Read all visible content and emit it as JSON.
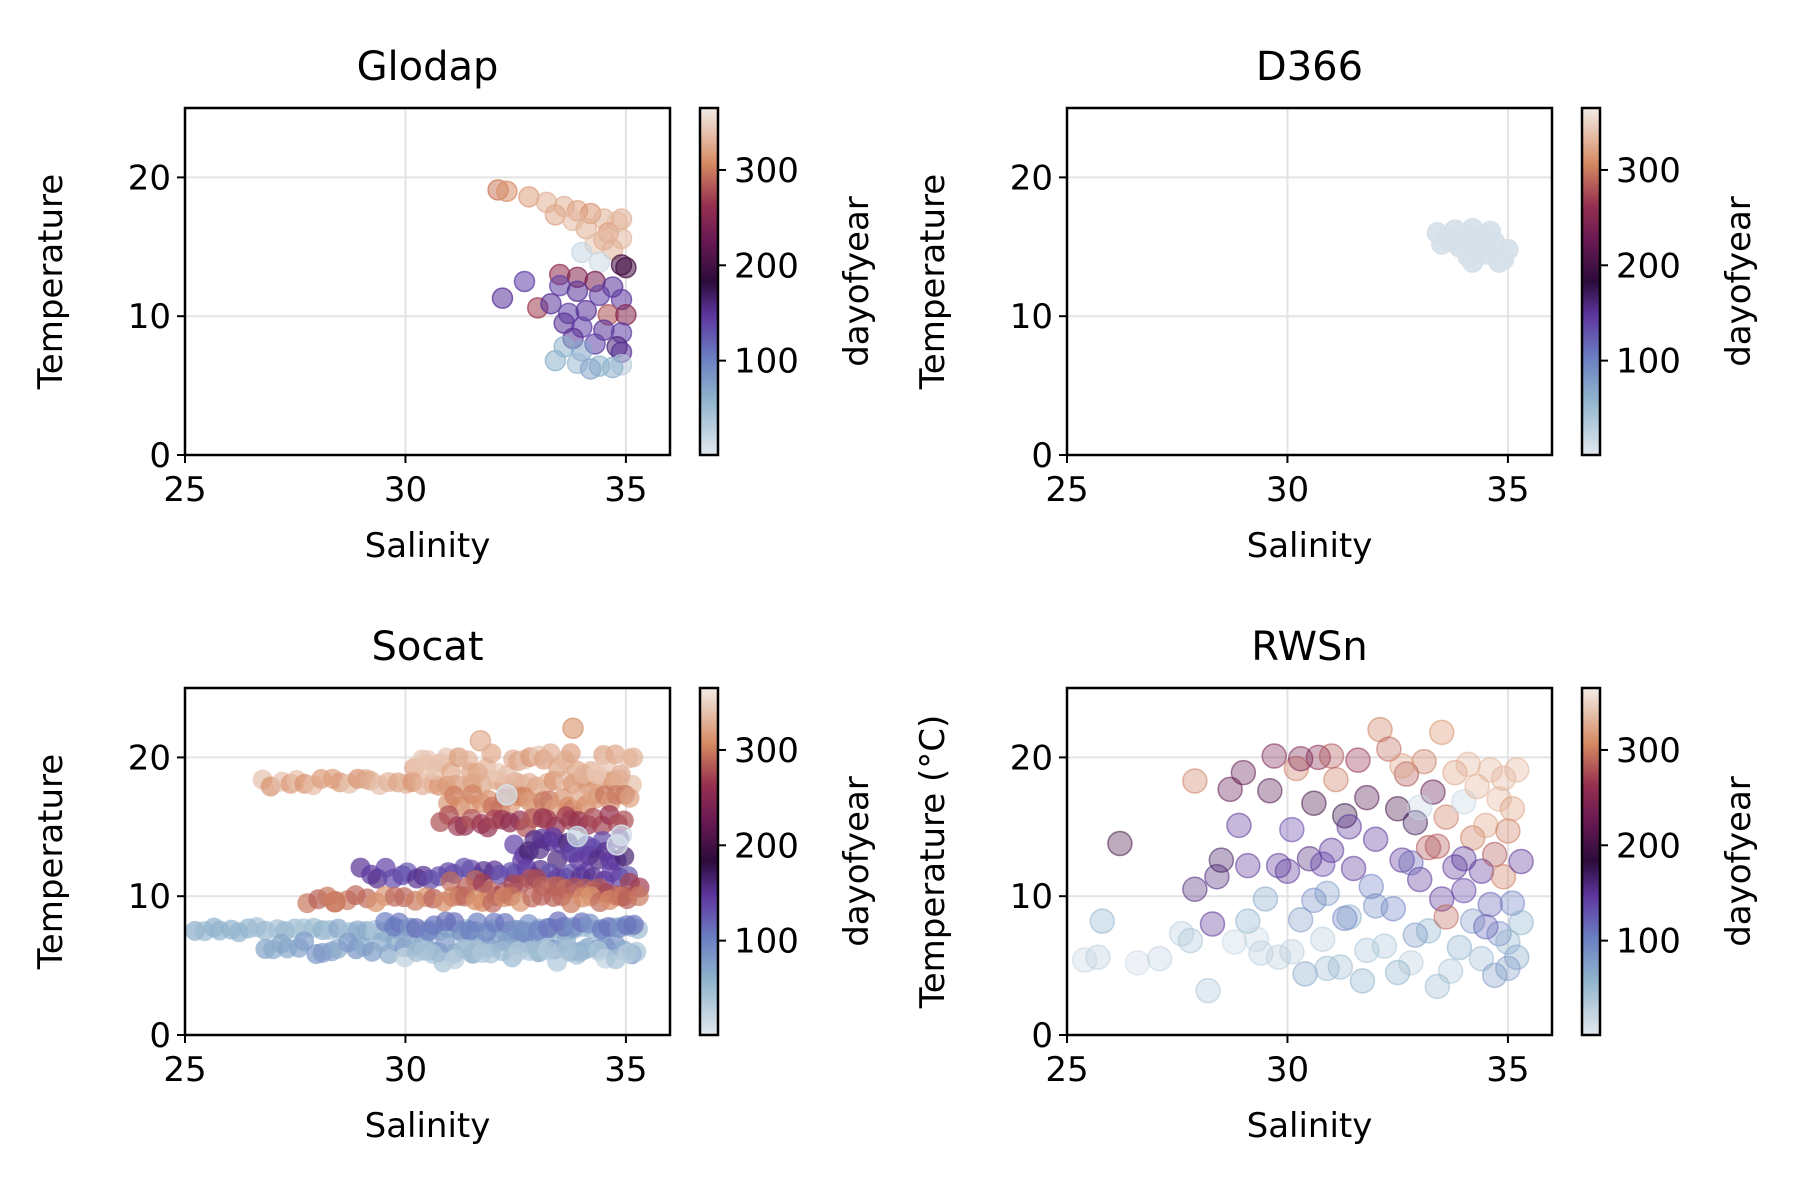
{
  "chart_data": [
    {
      "type": "scatter",
      "title": "Glodap",
      "xlabel": "Salinity",
      "ylabel": "Temperature",
      "xlim": [
        25,
        36
      ],
      "ylim": [
        0,
        25
      ],
      "xticks": [
        "25",
        "30",
        "35"
      ],
      "yticks": [
        "0",
        "10",
        "20"
      ],
      "colorbar": {
        "label": "dayofyear",
        "ticks": [
          "100",
          "200",
          "300"
        ],
        "range": [
          1,
          365
        ]
      },
      "points": [
        [
          32.1,
          19.1,
          300
        ],
        [
          32.3,
          19.0,
          310
        ],
        [
          32.8,
          18.6,
          320
        ],
        [
          33.2,
          18.2,
          330
        ],
        [
          33.6,
          17.9,
          330
        ],
        [
          33.9,
          17.6,
          320
        ],
        [
          34.2,
          17.4,
          315
        ],
        [
          34.5,
          17.0,
          330
        ],
        [
          34.8,
          16.8,
          340
        ],
        [
          33.4,
          17.3,
          325
        ],
        [
          33.8,
          16.9,
          335
        ],
        [
          34.1,
          16.3,
          330
        ],
        [
          34.6,
          16.0,
          320
        ],
        [
          34.9,
          15.6,
          335
        ],
        [
          34.3,
          15.2,
          340
        ],
        [
          34.7,
          14.8,
          330
        ],
        [
          34.0,
          14.6,
          20
        ],
        [
          34.4,
          13.9,
          15
        ],
        [
          34.9,
          13.7,
          200
        ],
        [
          33.5,
          13.0,
          260
        ],
        [
          33.9,
          12.8,
          250
        ],
        [
          34.3,
          12.5,
          240
        ],
        [
          34.7,
          12.1,
          150
        ],
        [
          32.7,
          12.5,
          140
        ],
        [
          33.5,
          12.2,
          140
        ],
        [
          33.9,
          11.8,
          150
        ],
        [
          34.4,
          11.5,
          140
        ],
        [
          34.9,
          11.2,
          145
        ],
        [
          32.2,
          11.3,
          150
        ],
        [
          33.0,
          10.6,
          270
        ],
        [
          33.3,
          10.9,
          150
        ],
        [
          33.7,
          10.2,
          140
        ],
        [
          34.1,
          10.4,
          150
        ],
        [
          34.6,
          10.1,
          280
        ],
        [
          35.0,
          10.1,
          250
        ],
        [
          33.6,
          9.5,
          150
        ],
        [
          34.0,
          9.2,
          140
        ],
        [
          34.5,
          9.0,
          150
        ],
        [
          34.9,
          8.8,
          140
        ],
        [
          33.8,
          8.4,
          150
        ],
        [
          34.3,
          8.0,
          140
        ],
        [
          34.8,
          7.8,
          160
        ],
        [
          33.6,
          7.8,
          60
        ],
        [
          34.0,
          7.5,
          70
        ],
        [
          34.9,
          7.4,
          150
        ],
        [
          33.4,
          6.8,
          60
        ],
        [
          33.9,
          6.6,
          50
        ],
        [
          34.4,
          6.4,
          60
        ],
        [
          34.9,
          6.5,
          30
        ],
        [
          34.2,
          6.2,
          70
        ],
        [
          34.7,
          6.3,
          60
        ],
        [
          35.0,
          13.5,
          200
        ],
        [
          34.5,
          15.5,
          330
        ],
        [
          34.9,
          17.0,
          330
        ]
      ]
    },
    {
      "type": "scatter",
      "title": "D366",
      "xlabel": "Salinity",
      "ylabel": "Temperature",
      "xlim": [
        25,
        36
      ],
      "ylim": [
        0,
        25
      ],
      "xticks": [
        "25",
        "30",
        "35"
      ],
      "yticks": [
        "0",
        "10",
        "20"
      ],
      "colorbar": {
        "label": "dayofyear",
        "ticks": [
          "100",
          "200",
          "300"
        ],
        "range": [
          1,
          365
        ]
      },
      "points": [
        [
          33.4,
          16.0,
          10
        ],
        [
          33.6,
          15.6,
          10
        ],
        [
          33.8,
          16.2,
          10
        ],
        [
          34.0,
          15.9,
          10
        ],
        [
          34.2,
          16.3,
          10
        ],
        [
          34.4,
          15.8,
          10
        ],
        [
          34.6,
          16.1,
          10
        ],
        [
          33.5,
          15.2,
          10
        ],
        [
          33.9,
          15.0,
          10
        ],
        [
          34.3,
          14.9,
          10
        ],
        [
          34.7,
          15.3,
          10
        ],
        [
          35.0,
          14.8,
          10
        ],
        [
          34.1,
          14.3,
          10
        ],
        [
          34.5,
          14.5,
          10
        ],
        [
          34.9,
          14.1,
          10
        ],
        [
          34.2,
          13.9,
          10
        ],
        [
          34.8,
          13.9,
          10
        ],
        [
          33.7,
          15.4,
          10
        ],
        [
          34.1,
          15.5,
          10
        ],
        [
          34.5,
          15.0,
          10
        ]
      ]
    },
    {
      "type": "scatter",
      "title": "Socat",
      "xlabel": "Salinity",
      "ylabel": "Temperature",
      "xlim": [
        25,
        36
      ],
      "ylim": [
        0,
        25
      ],
      "xticks": [
        "25",
        "30",
        "35"
      ],
      "yticks": [
        "0",
        "10",
        "20"
      ],
      "colorbar": {
        "label": "dayofyear",
        "ticks": [
          "100",
          "200",
          "300"
        ],
        "range": [
          1,
          365
        ]
      },
      "bands": [
        {
          "x0": 26.8,
          "x1": 35.1,
          "y": 18.2,
          "n": 45,
          "jx": 0.05,
          "jy": 0.3,
          "d": 325
        },
        {
          "x0": 30.2,
          "x1": 35.2,
          "y": 19.6,
          "n": 35,
          "jx": 0.05,
          "jy": 0.9,
          "d": 330
        },
        {
          "x0": 31.0,
          "x1": 35.1,
          "y": 16.8,
          "n": 30,
          "jx": 0.05,
          "jy": 0.6,
          "d": 310
        },
        {
          "x0": 30.8,
          "x1": 35.0,
          "y": 15.4,
          "n": 25,
          "jx": 0.05,
          "jy": 0.5,
          "d": 270
        },
        {
          "x0": 32.5,
          "x1": 35.0,
          "y": 13.4,
          "n": 25,
          "jx": 0.05,
          "jy": 0.9,
          "d": 150
        },
        {
          "x0": 29.0,
          "x1": 35.0,
          "y": 11.6,
          "n": 35,
          "jx": 0.05,
          "jy": 0.5,
          "d": 140
        },
        {
          "x0": 31.0,
          "x1": 35.3,
          "y": 10.6,
          "n": 25,
          "jx": 0.05,
          "jy": 0.7,
          "d": 280
        },
        {
          "x0": 27.8,
          "x1": 35.3,
          "y": 9.8,
          "n": 35,
          "jx": 0.05,
          "jy": 0.3,
          "d": 300
        },
        {
          "x0": 25.2,
          "x1": 35.3,
          "y": 7.6,
          "n": 50,
          "jx": 0.05,
          "jy": 0.2,
          "d": 55
        },
        {
          "x0": 26.8,
          "x1": 35.1,
          "y": 6.3,
          "n": 45,
          "jx": 0.05,
          "jy": 0.5,
          "d": 75
        },
        {
          "x0": 29.5,
          "x1": 35.2,
          "y": 7.8,
          "n": 30,
          "jx": 0.05,
          "jy": 0.4,
          "d": 100
        },
        {
          "x0": 30.0,
          "x1": 35.2,
          "y": 5.7,
          "n": 25,
          "jx": 0.05,
          "jy": 0.5,
          "d": 40
        }
      ],
      "points": [
        [
          31.7,
          21.2,
          330
        ],
        [
          33.8,
          22.1,
          320
        ],
        [
          30.5,
          19.4,
          340
        ],
        [
          33.9,
          14.3,
          20
        ],
        [
          32.3,
          17.3,
          10
        ],
        [
          34.8,
          13.7,
          10
        ],
        [
          34.9,
          14.4,
          10
        ],
        [
          28.4,
          9.6,
          300
        ]
      ]
    },
    {
      "type": "scatter",
      "title": "RWSn",
      "xlabel": "Salinity",
      "ylabel": "Temperature (°C)",
      "xlim": [
        25,
        36
      ],
      "ylim": [
        0,
        25
      ],
      "xticks": [
        "25",
        "30",
        "35"
      ],
      "yticks": [
        "0",
        "10",
        "20"
      ],
      "colorbar": {
        "label": "dayofyear",
        "ticks": [
          "100",
          "200",
          "300"
        ],
        "range": [
          1,
          365
        ]
      },
      "points": [
        [
          25.4,
          5.4,
          20
        ],
        [
          25.7,
          5.6,
          30
        ],
        [
          25.8,
          8.2,
          60
        ],
        [
          26.2,
          13.8,
          200
        ],
        [
          26.6,
          5.2,
          15
        ],
        [
          27.1,
          5.5,
          25
        ],
        [
          27.6,
          7.3,
          30
        ],
        [
          27.8,
          6.8,
          40
        ],
        [
          27.9,
          18.3,
          300
        ],
        [
          27.9,
          10.5,
          160
        ],
        [
          28.2,
          3.2,
          40
        ],
        [
          28.3,
          8.0,
          150
        ],
        [
          28.4,
          11.4,
          160
        ],
        [
          28.5,
          12.6,
          170
        ],
        [
          28.7,
          17.7,
          220
        ],
        [
          29.0,
          18.9,
          220
        ],
        [
          28.9,
          15.1,
          150
        ],
        [
          29.1,
          12.2,
          150
        ],
        [
          29.1,
          8.2,
          60
        ],
        [
          29.3,
          6.9,
          20
        ],
        [
          29.5,
          9.8,
          70
        ],
        [
          29.6,
          17.6,
          210
        ],
        [
          29.7,
          20.1,
          240
        ],
        [
          29.8,
          5.6,
          30
        ],
        [
          30.0,
          11.8,
          150
        ],
        [
          30.1,
          14.8,
          140
        ],
        [
          30.2,
          19.2,
          300
        ],
        [
          30.3,
          8.3,
          80
        ],
        [
          30.4,
          4.4,
          70
        ],
        [
          30.5,
          12.7,
          160
        ],
        [
          30.6,
          16.7,
          200
        ],
        [
          30.7,
          20.0,
          250
        ],
        [
          30.8,
          6.9,
          30
        ],
        [
          30.9,
          10.2,
          80
        ],
        [
          31.0,
          13.3,
          150
        ],
        [
          31.1,
          18.4,
          300
        ],
        [
          31.2,
          4.9,
          50
        ],
        [
          31.3,
          15.8,
          180
        ],
        [
          31.4,
          8.5,
          60
        ],
        [
          31.5,
          12.0,
          150
        ],
        [
          31.6,
          19.8,
          260
        ],
        [
          31.7,
          3.9,
          60
        ],
        [
          31.8,
          17.1,
          210
        ],
        [
          31.9,
          10.7,
          100
        ],
        [
          32.0,
          14.1,
          150
        ],
        [
          32.1,
          22.0,
          300
        ],
        [
          32.2,
          6.4,
          40
        ],
        [
          32.3,
          20.6,
          290
        ],
        [
          32.4,
          9.1,
          100
        ],
        [
          32.5,
          16.3,
          200
        ],
        [
          32.6,
          12.6,
          150
        ],
        [
          32.7,
          18.8,
          280
        ],
        [
          32.8,
          5.2,
          30
        ],
        [
          32.9,
          15.3,
          170
        ],
        [
          33.0,
          11.2,
          150
        ],
        [
          33.1,
          19.7,
          300
        ],
        [
          33.2,
          7.5,
          60
        ],
        [
          33.3,
          17.5,
          220
        ],
        [
          33.4,
          13.6,
          280
        ],
        [
          33.5,
          21.8,
          310
        ],
        [
          33.5,
          9.8,
          150
        ],
        [
          33.6,
          15.7,
          300
        ],
        [
          33.7,
          4.6,
          40
        ],
        [
          33.8,
          18.9,
          320
        ],
        [
          33.8,
          12.1,
          150
        ],
        [
          33.9,
          6.3,
          60
        ],
        [
          34.0,
          16.8,
          20
        ],
        [
          34.0,
          10.4,
          140
        ],
        [
          34.1,
          19.5,
          330
        ],
        [
          34.2,
          14.2,
          300
        ],
        [
          34.2,
          8.2,
          80
        ],
        [
          34.3,
          17.9,
          330
        ],
        [
          34.4,
          11.8,
          150
        ],
        [
          34.4,
          5.5,
          50
        ],
        [
          34.5,
          15.1,
          320
        ],
        [
          34.6,
          19.1,
          330
        ],
        [
          34.6,
          9.4,
          120
        ],
        [
          34.7,
          13.0,
          280
        ],
        [
          34.7,
          4.3,
          80
        ],
        [
          34.8,
          17.0,
          330
        ],
        [
          34.8,
          7.3,
          90
        ],
        [
          34.9,
          11.4,
          300
        ],
        [
          34.9,
          18.5,
          330
        ],
        [
          35.0,
          14.7,
          300
        ],
        [
          35.0,
          6.7,
          60
        ],
        [
          35.1,
          16.3,
          320
        ],
        [
          35.1,
          9.5,
          100
        ],
        [
          35.2,
          19.1,
          330
        ],
        [
          35.2,
          5.6,
          70
        ],
        [
          35.3,
          12.5,
          150
        ],
        [
          35.3,
          8.1,
          60
        ],
        [
          30.3,
          19.9,
          240
        ],
        [
          31.0,
          20.1,
          280
        ],
        [
          32.6,
          19.4,
          320
        ],
        [
          33.0,
          16.4,
          20
        ],
        [
          31.4,
          15.0,
          150
        ],
        [
          30.8,
          12.3,
          140
        ],
        [
          29.8,
          12.2,
          150
        ],
        [
          32.8,
          12.4,
          120
        ],
        [
          33.2,
          13.5,
          280
        ],
        [
          34.0,
          12.7,
          150
        ],
        [
          32.0,
          9.3,
          90
        ],
        [
          31.3,
          8.4,
          100
        ],
        [
          30.6,
          9.7,
          90
        ],
        [
          32.9,
          7.2,
          80
        ],
        [
          33.6,
          8.5,
          290
        ],
        [
          34.5,
          7.8,
          120
        ],
        [
          29.4,
          5.9,
          30
        ],
        [
          30.9,
          4.8,
          50
        ],
        [
          32.5,
          4.5,
          60
        ],
        [
          33.4,
          3.5,
          50
        ],
        [
          35.0,
          4.8,
          80
        ],
        [
          31.8,
          6.1,
          40
        ],
        [
          30.1,
          6.0,
          30
        ],
        [
          28.8,
          6.7,
          20
        ]
      ]
    }
  ]
}
